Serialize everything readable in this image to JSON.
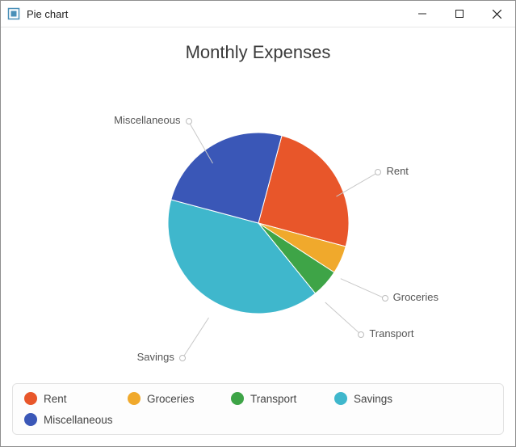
{
  "window": {
    "title": "Pie chart",
    "icon_color_outer": "#4a90b8",
    "icon_color_inner": "#ffffff"
  },
  "chart": {
    "type": "pie",
    "title": "Monthly Expenses",
    "title_fontsize": 22,
    "title_color": "#3a3a3a",
    "background_color": "#ffffff",
    "radius": 112,
    "start_angle_deg": -75,
    "direction": "clockwise",
    "callout_line_color": "#c8c8c8",
    "callout_text_color": "#555555",
    "callout_fontsize": 13,
    "slices": [
      {
        "label": "Rent",
        "value": 25,
        "color": "#e8562a"
      },
      {
        "label": "Groceries",
        "value": 5,
        "color": "#f0a92c"
      },
      {
        "label": "Transport",
        "value": 5,
        "color": "#3ea447"
      },
      {
        "label": "Savings",
        "value": 40,
        "color": "#3fb7cc"
      },
      {
        "label": "Miscellaneous",
        "value": 25,
        "color": "#3a57b7"
      }
    ]
  },
  "legend": {
    "border_color": "#e2e2e2",
    "border_radius": 6,
    "marker_shape": "circle",
    "marker_size": 16,
    "text_color": "#444444",
    "fontsize": 13.5,
    "items": [
      {
        "label": "Rent",
        "color": "#e8562a"
      },
      {
        "label": "Groceries",
        "color": "#f0a92c"
      },
      {
        "label": "Transport",
        "color": "#3ea447"
      },
      {
        "label": "Savings",
        "color": "#3fb7cc"
      },
      {
        "label": "Miscellaneous",
        "color": "#3a57b7"
      }
    ]
  }
}
